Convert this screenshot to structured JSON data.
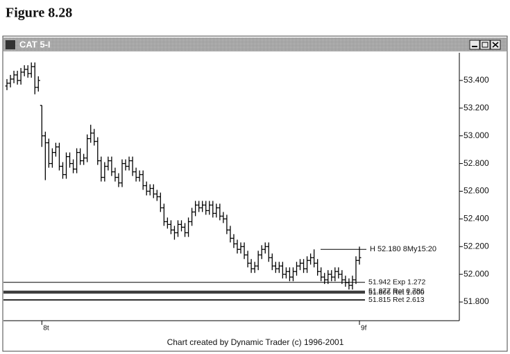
{
  "figure_label": "Figure 8.28",
  "window_title": "CAT 5-I",
  "footer": "Chart created by Dynamic Trader (c) 1996-2001",
  "chart_data": {
    "type": "ohlc",
    "color": "#000000",
    "categories": [
      null,
      null,
      null,
      null,
      null,
      null,
      null,
      null,
      null,
      null,
      "8t",
      null,
      null,
      null,
      null,
      null,
      null,
      null,
      null,
      null,
      null,
      null,
      null,
      null,
      null,
      null,
      null,
      null,
      null,
      null,
      null,
      null,
      null,
      null,
      null,
      null,
      null,
      null,
      null,
      null,
      null,
      null,
      null,
      null,
      null,
      null,
      null,
      null,
      null,
      null,
      null,
      null,
      null,
      null,
      null,
      null,
      null,
      null,
      null,
      null,
      null,
      null,
      null,
      null,
      null,
      null,
      null,
      null,
      null,
      null,
      null,
      null,
      null,
      null,
      null,
      null,
      null,
      null,
      null,
      null,
      null,
      null,
      null,
      null,
      null,
      null,
      null,
      null,
      null,
      null,
      null,
      null,
      null,
      null,
      null,
      null,
      null,
      null,
      null,
      null,
      null,
      "9f"
    ],
    "open": [
      53.36,
      53.38,
      53.41,
      53.44,
      53.4,
      53.46,
      53.48,
      53.45,
      53.5,
      53.35,
      53.22,
      53.0,
      52.95,
      52.8,
      52.88,
      52.92,
      52.78,
      52.72,
      52.85,
      52.8,
      52.76,
      52.88,
      52.82,
      52.84,
      52.98,
      53.02,
      52.96,
      52.82,
      52.7,
      52.78,
      52.82,
      52.74,
      52.7,
      52.66,
      52.8,
      52.78,
      52.82,
      52.74,
      52.7,
      52.72,
      52.64,
      52.6,
      52.62,
      52.58,
      52.56,
      52.48,
      52.38,
      52.36,
      52.32,
      52.3,
      52.36,
      52.34,
      52.3,
      52.38,
      52.45,
      52.5,
      52.48,
      52.5,
      52.46,
      52.5,
      52.44,
      52.48,
      52.42,
      52.4,
      52.32,
      52.26,
      52.22,
      52.18,
      52.2,
      52.14,
      52.08,
      52.04,
      52.06,
      52.14,
      52.18,
      52.2,
      52.12,
      52.06,
      52.04,
      52.06,
      52.0,
      52.02,
      51.98,
      52.02,
      52.06,
      52.08,
      52.04,
      52.1,
      52.12,
      52.08,
      52.02,
      51.98,
      51.96,
      52.0,
      51.98,
      52.02,
      52.0,
      51.96,
      51.94,
      51.92,
      51.96,
      52.1
    ],
    "high": [
      53.41,
      53.44,
      53.47,
      53.47,
      53.49,
      53.51,
      53.51,
      53.53,
      53.53,
      53.43,
      53.22,
      53.03,
      52.98,
      52.91,
      52.95,
      52.95,
      52.81,
      52.88,
      52.88,
      52.83,
      52.91,
      52.91,
      52.87,
      53.01,
      53.08,
      53.05,
      52.99,
      52.85,
      52.81,
      52.85,
      52.85,
      52.77,
      52.73,
      52.83,
      52.83,
      52.85,
      52.85,
      52.77,
      52.75,
      52.75,
      52.67,
      52.65,
      52.65,
      52.61,
      52.59,
      52.51,
      52.41,
      52.39,
      52.35,
      52.39,
      52.39,
      52.37,
      52.41,
      52.48,
      52.53,
      52.53,
      52.53,
      52.53,
      52.53,
      52.53,
      52.51,
      52.51,
      52.45,
      52.43,
      52.35,
      52.29,
      52.25,
      52.23,
      52.23,
      52.17,
      52.11,
      52.09,
      52.17,
      52.21,
      52.23,
      52.23,
      52.15,
      52.09,
      52.09,
      52.09,
      52.05,
      52.05,
      52.05,
      52.09,
      52.11,
      52.11,
      52.13,
      52.15,
      52.18,
      52.11,
      52.05,
      52.01,
      52.03,
      52.03,
      52.05,
      52.05,
      52.03,
      51.99,
      51.97,
      51.99,
      52.13,
      52.2
    ],
    "low": [
      53.33,
      53.35,
      53.38,
      53.37,
      53.37,
      53.43,
      53.42,
      53.42,
      53.3,
      53.32,
      52.92,
      52.68,
      52.77,
      52.77,
      52.85,
      52.75,
      52.69,
      52.69,
      52.77,
      52.73,
      52.73,
      52.79,
      52.79,
      52.81,
      52.95,
      52.93,
      52.79,
      52.67,
      52.67,
      52.75,
      52.71,
      52.67,
      52.63,
      52.63,
      52.75,
      52.75,
      52.71,
      52.67,
      52.67,
      52.61,
      52.57,
      52.57,
      52.55,
      52.53,
      52.45,
      52.35,
      52.33,
      52.29,
      52.25,
      52.27,
      52.31,
      52.27,
      52.27,
      52.35,
      52.42,
      52.45,
      52.45,
      52.43,
      52.43,
      52.41,
      52.41,
      52.39,
      52.37,
      52.29,
      52.23,
      52.19,
      52.15,
      52.15,
      52.11,
      52.05,
      52.01,
      52.01,
      52.03,
      52.11,
      52.15,
      52.09,
      52.03,
      52.01,
      52.01,
      51.97,
      51.97,
      51.95,
      51.95,
      51.99,
      52.03,
      52.01,
      52.01,
      52.07,
      52.05,
      51.99,
      51.95,
      51.93,
      51.93,
      51.95,
      51.95,
      51.97,
      51.93,
      51.91,
      51.89,
      51.89,
      51.93,
      52.07
    ],
    "close": [
      53.38,
      53.41,
      53.44,
      53.4,
      53.46,
      53.48,
      53.45,
      53.5,
      53.35,
      53.4,
      53.0,
      52.95,
      52.8,
      52.88,
      52.92,
      52.78,
      52.72,
      52.85,
      52.8,
      52.76,
      52.88,
      52.82,
      52.84,
      52.98,
      53.02,
      52.96,
      52.82,
      52.7,
      52.78,
      52.82,
      52.74,
      52.7,
      52.66,
      52.8,
      52.78,
      52.82,
      52.74,
      52.7,
      52.72,
      52.64,
      52.6,
      52.62,
      52.58,
      52.56,
      52.48,
      52.38,
      52.36,
      52.32,
      52.3,
      52.36,
      52.34,
      52.3,
      52.38,
      52.45,
      52.5,
      52.48,
      52.5,
      52.46,
      52.5,
      52.44,
      52.48,
      52.42,
      52.4,
      52.32,
      52.26,
      52.22,
      52.18,
      52.2,
      52.14,
      52.08,
      52.04,
      52.06,
      52.14,
      52.18,
      52.2,
      52.12,
      52.06,
      52.04,
      52.06,
      52.0,
      52.02,
      51.98,
      52.02,
      52.06,
      52.08,
      52.04,
      52.1,
      52.12,
      52.08,
      52.02,
      51.98,
      51.96,
      52.0,
      51.98,
      52.02,
      52.0,
      51.96,
      51.94,
      51.92,
      51.96,
      52.1,
      52.12
    ],
    "ylim": [
      51.665,
      53.59
    ],
    "yticks": [
      {
        "value": 51.8,
        "label": "51.800"
      },
      {
        "value": 52.0,
        "label": "52.000"
      },
      {
        "value": 52.2,
        "label": "52.200"
      },
      {
        "value": 52.4,
        "label": "52.400"
      },
      {
        "value": 52.6,
        "label": "52.600"
      },
      {
        "value": 52.8,
        "label": "52.800"
      },
      {
        "value": 53.0,
        "label": "53.000"
      },
      {
        "value": 53.2,
        "label": "53.200"
      },
      {
        "value": 53.4,
        "label": "53.400"
      }
    ],
    "high_marker": {
      "value": 52.18,
      "label": "H 52.180 8My15:20"
    },
    "levels": [
      {
        "value": 51.942,
        "label": "51.942 Exp 1.272"
      },
      {
        "value": 51.877,
        "label": "51.877 Ret 0.786"
      },
      {
        "value": 51.866,
        "label": "51.866 Ret 1.000"
      },
      {
        "value": 51.815,
        "label": "51.815 Ret 2.613"
      }
    ]
  }
}
